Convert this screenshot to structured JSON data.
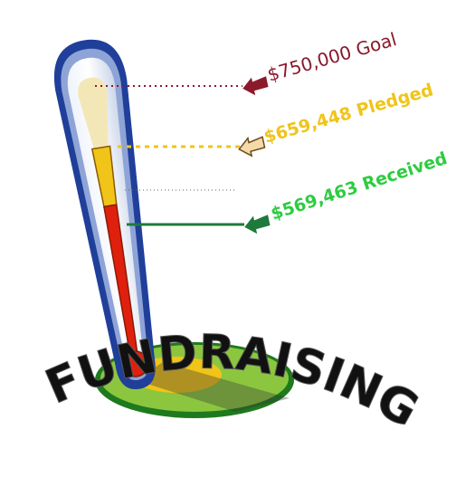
{
  "goal_label": "$750,000 Goal",
  "pledged_label": "$659,448 Pledged",
  "received_label": "$569,463 Received",
  "banner": "FUNDRAISING"
}
